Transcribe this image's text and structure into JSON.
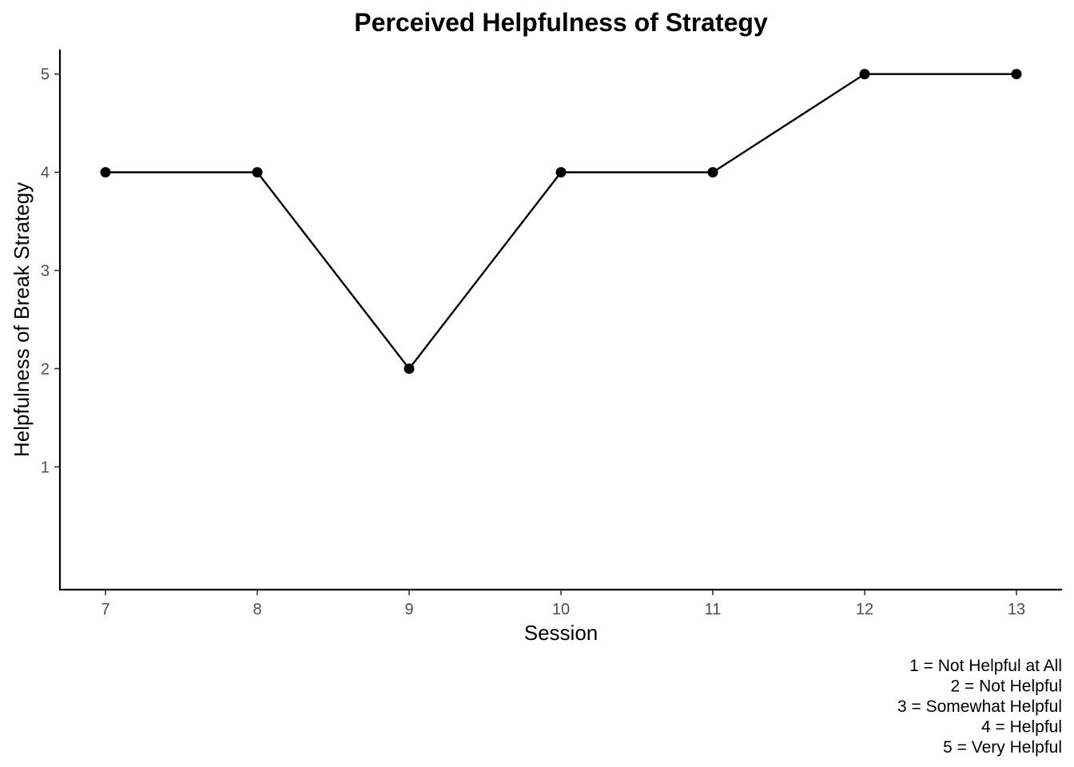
{
  "chart_data": {
    "type": "line",
    "title": "Perceived Helpfulness of Strategy",
    "xlabel": "Session",
    "ylabel": "Helpfulness of Break Strategy",
    "x": [
      7,
      8,
      9,
      10,
      11,
      12,
      13
    ],
    "y": [
      4,
      4,
      2,
      4,
      4,
      5,
      5
    ],
    "xticks": [
      "7",
      "8",
      "9",
      "10",
      "11",
      "12",
      "13"
    ],
    "yticks": [
      "1",
      "2",
      "3",
      "4",
      "5"
    ],
    "xlim": [
      6.7,
      13.3
    ],
    "ylim": [
      -0.25,
      5.25
    ],
    "grid": false,
    "line_color": "#000000",
    "marker": "filled-circle",
    "caption": [
      "1 = Not Helpful at All",
      "2 = Not Helpful",
      "3 = Somewhat Helpful",
      "4 = Helpful",
      "5 = Very Helpful"
    ]
  }
}
